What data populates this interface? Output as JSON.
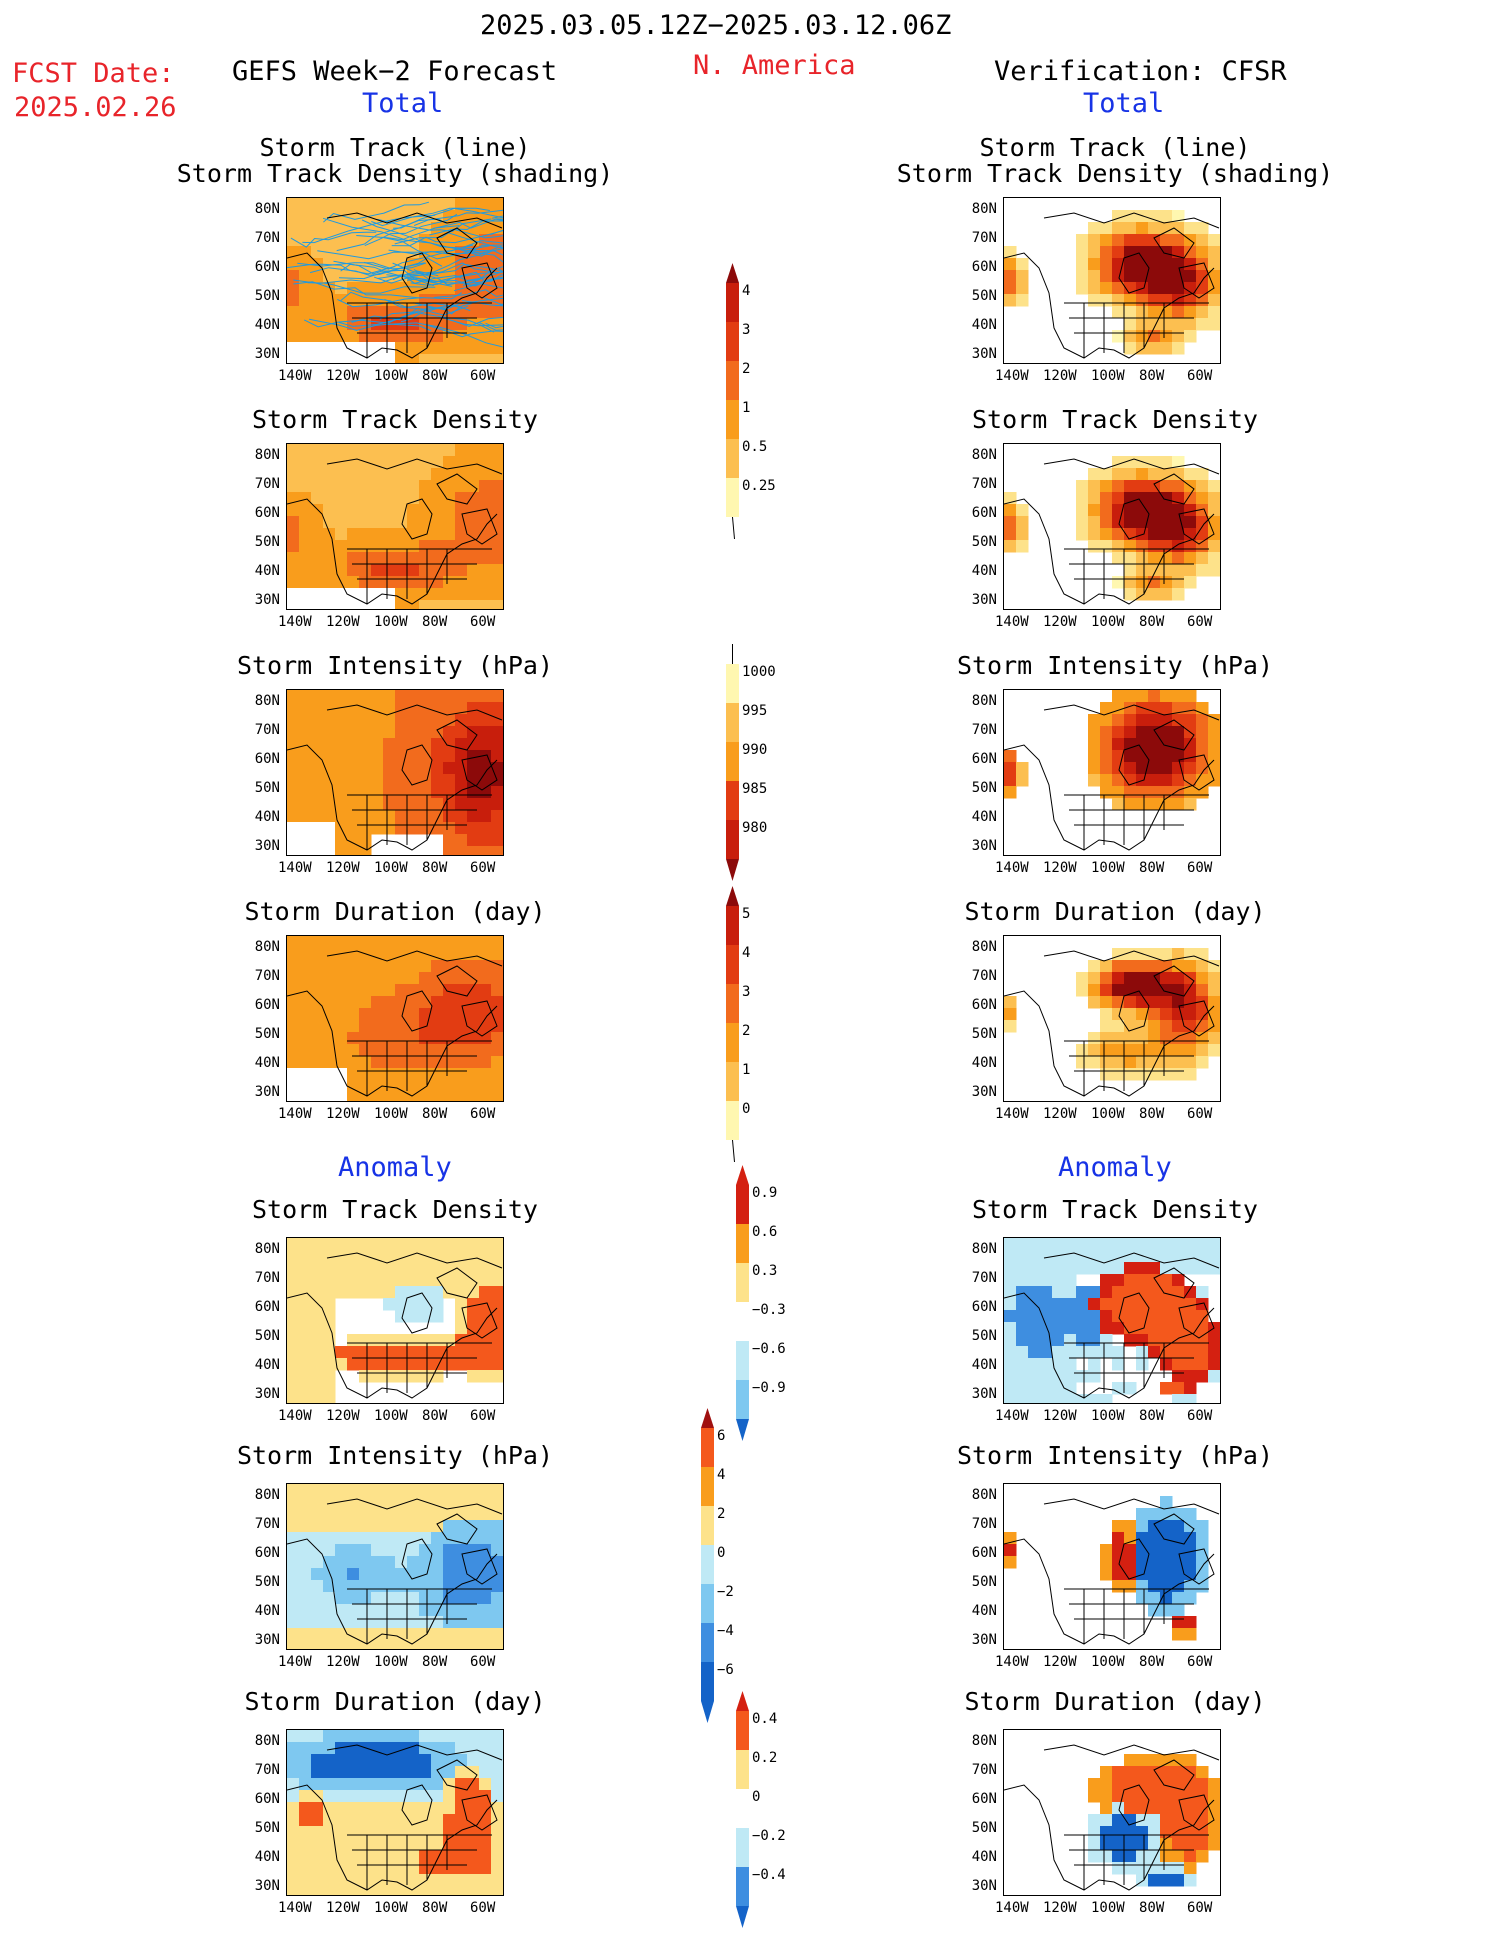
{
  "header": {
    "period": "2025.03.05.12Z−2025.03.12.06Z",
    "fcst_label": "FCST Date:",
    "fcst_date": "2025.02.26",
    "left_title": "GEFS Week−2 Forecast",
    "region": "N. America",
    "right_title": "Verification: CFSR"
  },
  "sections": {
    "total": "Total",
    "anomaly": "Anomaly"
  },
  "panel_titles": {
    "track_line": "Storm Track (line)",
    "track_density_shading": "Storm Track Density (shading)",
    "density": "Storm Track Density",
    "intensity": "Storm Intensity (hPa)",
    "duration": "Storm Duration (day)"
  },
  "axes": {
    "lat_labels": [
      "80N",
      "70N",
      "60N",
      "50N",
      "40N",
      "30N"
    ],
    "lon_labels": [
      "140W",
      "120W",
      "100W",
      "80W",
      "60W"
    ]
  },
  "colorbars": {
    "total_density": [
      "4",
      "3",
      "2",
      "1",
      "0.5",
      "0.25"
    ],
    "total_intensity": [
      "1000",
      "995",
      "990",
      "985",
      "980"
    ],
    "total_duration": [
      "5",
      "4",
      "3",
      "2",
      "1",
      "0"
    ],
    "anom_density": [
      "0.9",
      "0.6",
      "0.3",
      "−0.3",
      "−0.6",
      "−0.9"
    ],
    "anom_intensity": [
      "6",
      "4",
      "2",
      "0",
      "−2",
      "−4",
      "−6"
    ],
    "anom_duration": [
      "0.4",
      "0.2",
      "0",
      "−0.2",
      "−0.4"
    ]
  },
  "colors": {
    "seq": [
      "#fff7b0",
      "#fde28a",
      "#fcbf50",
      "#f99d1c",
      "#f26b1d",
      "#e23c12",
      "#c81e0c",
      "#8c0a0a"
    ],
    "div_warm": [
      "#fde28a",
      "#f99d1c",
      "#f4581c",
      "#d42011"
    ],
    "div_cool": [
      "#bfe9f5",
      "#7ec8f0",
      "#3e8ee0",
      "#1463c8"
    ],
    "track_line": "#1e9ae0"
  }
}
